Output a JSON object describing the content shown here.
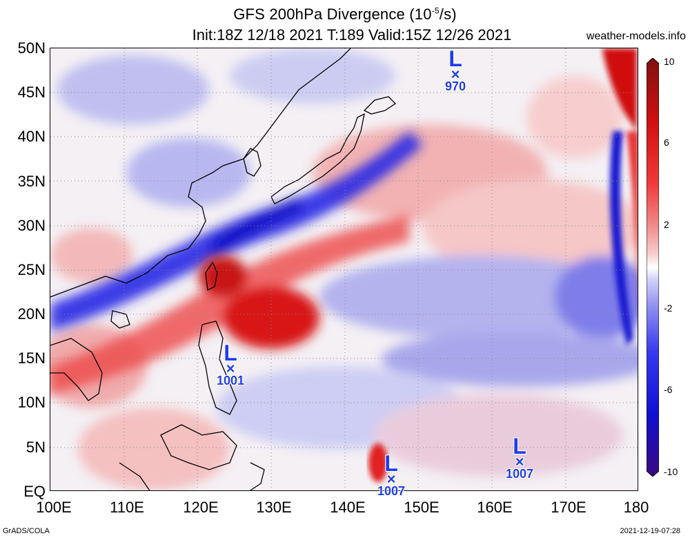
{
  "title": {
    "line1_prefix": "GFS 200hPa Divergence (10",
    "line1_exp": "-5",
    "line1_suffix": "/s)",
    "line2": "Init:18Z 12/18 2021 T:189 Valid:15Z 12/26 2021"
  },
  "site": "weather-models.info",
  "axes": {
    "lat_labels": [
      "50N",
      "45N",
      "40N",
      "35N",
      "30N",
      "25N",
      "20N",
      "15N",
      "10N",
      "5N",
      "EQ"
    ],
    "lon_labels": [
      "100E",
      "110E",
      "120E",
      "130E",
      "140E",
      "150E",
      "160E",
      "170E",
      "180"
    ]
  },
  "colorbar": {
    "labels": [
      "10",
      "6",
      "2",
      "-2",
      "-6",
      "-10"
    ],
    "colors": [
      "#3a0a80",
      "#1010d0",
      "#3a3af0",
      "#8a8af0",
      "#d0d0f8",
      "#ffffff",
      "#f8d0d0",
      "#f08a8a",
      "#f03a3a",
      "#d01010",
      "#801010"
    ]
  },
  "lows": [
    {
      "label": "L",
      "pressure": "970"
    },
    {
      "label": "L",
      "pressure": "1001"
    },
    {
      "label": "L",
      "pressure": "1007"
    },
    {
      "label": "L",
      "pressure": "1007"
    }
  ],
  "credits": {
    "left": "GrADS/COLA",
    "right": "2021-12-19-07:28"
  }
}
